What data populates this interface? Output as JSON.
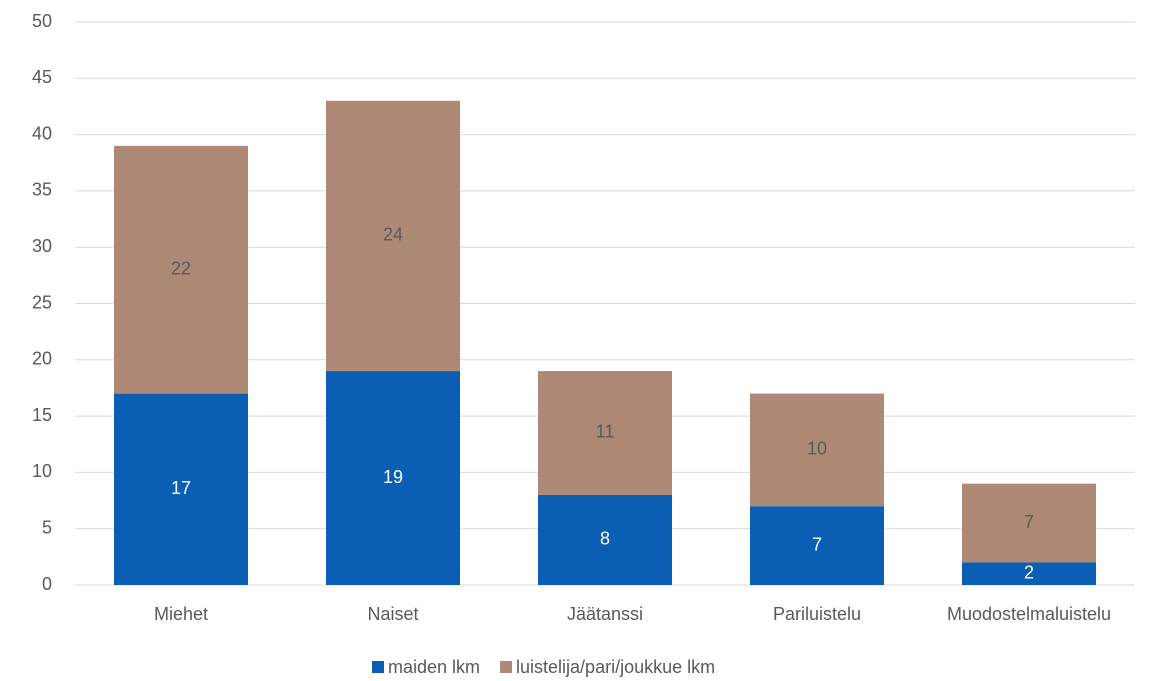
{
  "chart_data": {
    "type": "stacked_bar",
    "categories": [
      "Miehet",
      "Naiset",
      "Jäätanssi",
      "Pariluistelu",
      "Muodostelmaluistelu"
    ],
    "series": [
      {
        "name": "maiden lkm",
        "color": "#0a5fb4",
        "values": [
          17,
          19,
          8,
          7,
          2
        ]
      },
      {
        "name": "luistelija/pari/joukkue lkm",
        "color": "#ae8a76",
        "values": [
          22,
          24,
          11,
          10,
          7
        ]
      }
    ],
    "ylim": [
      0,
      50
    ],
    "yticks": [
      0,
      5,
      10,
      15,
      20,
      25,
      30,
      35,
      40,
      45,
      50
    ],
    "grid": true,
    "legend": "bottom"
  }
}
